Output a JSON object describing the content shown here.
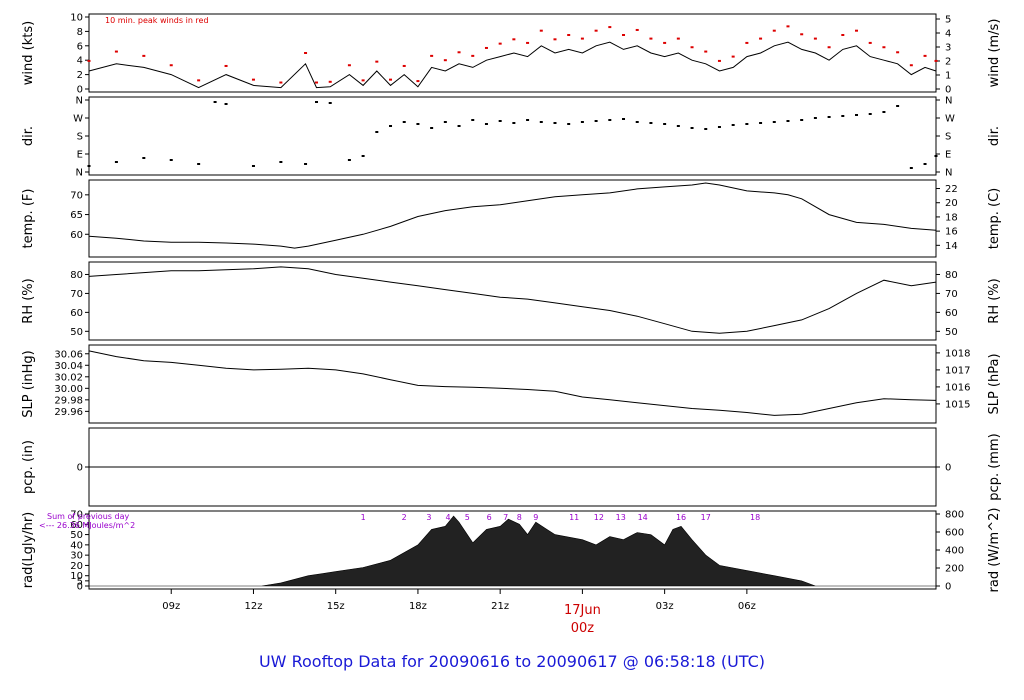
{
  "footer_title": "UW Rooftop Data for 20090616  to  20090617 @ 06:58:18  (UTC)",
  "colors": {
    "peak": "#dd0000",
    "precip_line": "#dd0000",
    "date_marker": "#cc0000",
    "footer": "#1a1ad6",
    "annotation": "#9900cc"
  },
  "chart_data": [
    {
      "id": "wind",
      "type": "line",
      "ylabel_left": "wind (kts)",
      "ylabel_right": "wind (m/s)",
      "annotation": "10 min. peak winds in red",
      "ylim": [
        0,
        10
      ],
      "yticks": [
        0,
        2,
        4,
        6,
        8,
        10
      ],
      "right_ticks": [
        0,
        1,
        2,
        3,
        4,
        5
      ],
      "hours": [
        0,
        1,
        2,
        3,
        4,
        5,
        6,
        7,
        7.9,
        8.3,
        8.8,
        9.5,
        10,
        10.5,
        11,
        11.5,
        12,
        12.5,
        13,
        13.5,
        14,
        14.5,
        15,
        15.5,
        16,
        16.5,
        17,
        17.5,
        18,
        18.5,
        19,
        19.5,
        20,
        20.5,
        21,
        21.5,
        22,
        22.5,
        23,
        23.5,
        24,
        24.5,
        25,
        25.5,
        26,
        26.5,
        27,
        27.5,
        28,
        28.5,
        29,
        29.5,
        30,
        30.5,
        30.9
      ],
      "values": [
        2.5,
        3.5,
        3.0,
        2.0,
        0.2,
        2.0,
        0.5,
        0.2,
        3.5,
        0.2,
        0.3,
        2.0,
        0.5,
        2.5,
        0.5,
        2.0,
        0.3,
        3.0,
        2.5,
        3.5,
        3.0,
        4.0,
        4.5,
        5.0,
        4.5,
        6.0,
        5.0,
        5.5,
        5.0,
        6.0,
        6.5,
        5.5,
        6.0,
        5.0,
        4.5,
        5.0,
        4.0,
        3.5,
        2.5,
        3.0,
        4.5,
        5.0,
        6.0,
        6.5,
        5.5,
        5.0,
        4.0,
        5.5,
        6.0,
        4.5,
        4.0,
        3.5,
        2.0,
        3.0,
        2.5
      ],
      "peaks": [
        3.9,
        5.2,
        4.6,
        3.3,
        1.2,
        3.2,
        1.3,
        0.9,
        5.0,
        0.9,
        1.0,
        3.3,
        1.2,
        3.8,
        1.3,
        3.2,
        1.1,
        4.6,
        4.0,
        5.1,
        4.6,
        5.7,
        6.3,
        6.9,
        6.4,
        8.1,
        6.9,
        7.5,
        7.0,
        8.1,
        8.6,
        7.5,
        8.2,
        7.0,
        6.4,
        7.0,
        5.8,
        5.2,
        3.9,
        4.5,
        6.4,
        7.0,
        8.1,
        8.7,
        7.6,
        7.0,
        5.8,
        7.5,
        8.1,
        6.4,
        5.8,
        5.1,
        3.3,
        4.6,
        3.9
      ]
    },
    {
      "id": "direction",
      "type": "scatter",
      "ylabel_left": "dir.",
      "ylabel_right": "dir.",
      "ylim": [
        0,
        360
      ],
      "yticks": [
        0,
        90,
        180,
        270,
        360
      ],
      "tick_labels": [
        "N",
        "E",
        "S",
        "W",
        "N"
      ],
      "hours": [
        0,
        1,
        2,
        3,
        4,
        4.6,
        5,
        6,
        7,
        7.9,
        8.3,
        8.8,
        9.5,
        10,
        10.5,
        11,
        11.5,
        12,
        12.5,
        13,
        13.5,
        14,
        14.5,
        15,
        15.5,
        16,
        16.5,
        17,
        17.5,
        18,
        18.5,
        19,
        19.5,
        20,
        20.5,
        21,
        21.5,
        22,
        22.5,
        23,
        23.5,
        24,
        24.5,
        25,
        25.5,
        26,
        26.5,
        27,
        27.5,
        28,
        28.5,
        29,
        29.5,
        30,
        30.5,
        30.9
      ],
      "values": [
        30,
        50,
        70,
        60,
        40,
        350,
        340,
        30,
        50,
        40,
        350,
        345,
        60,
        80,
        200,
        230,
        250,
        240,
        220,
        250,
        230,
        260,
        240,
        255,
        245,
        260,
        250,
        245,
        240,
        250,
        255,
        260,
        265,
        250,
        245,
        240,
        230,
        220,
        215,
        225,
        235,
        240,
        245,
        250,
        255,
        260,
        270,
        275,
        280,
        285,
        290,
        300,
        330,
        20,
        40,
        80
      ]
    },
    {
      "id": "temperature",
      "type": "line",
      "ylabel_left": "temp. (F)",
      "ylabel_right": "temp. (C)",
      "ylim": [
        55,
        73
      ],
      "yticks": [
        60,
        65,
        70
      ],
      "right_ticks": [
        14,
        16,
        18,
        20,
        22
      ],
      "hours": [
        0,
        1,
        2,
        3,
        4,
        5,
        6,
        7,
        7.5,
        8,
        9,
        10,
        11,
        12,
        13,
        14,
        15,
        16,
        17,
        18,
        19,
        20,
        21,
        22,
        22.5,
        23,
        24,
        25,
        25.5,
        26,
        27,
        28,
        29,
        30,
        30.9
      ],
      "values": [
        59.5,
        59.0,
        58.3,
        58.0,
        58.0,
        57.8,
        57.5,
        57.0,
        56.5,
        57.0,
        58.5,
        60.0,
        62.0,
        64.5,
        66.0,
        67.0,
        67.5,
        68.5,
        69.5,
        70.0,
        70.5,
        71.5,
        72.0,
        72.5,
        73.0,
        72.5,
        71.0,
        70.5,
        70.0,
        69.0,
        65.0,
        63.0,
        62.5,
        61.5,
        61.0
      ]
    },
    {
      "id": "rh",
      "type": "line",
      "ylabel_left": "RH (%)",
      "ylabel_right": "RH (%)",
      "ylim": [
        47,
        85
      ],
      "yticks": [
        50,
        60,
        70,
        80
      ],
      "right_ticks": [
        50,
        60,
        70,
        80
      ],
      "hours": [
        0,
        1,
        2,
        3,
        4,
        5,
        6,
        7,
        8,
        9,
        10,
        11,
        12,
        13,
        14,
        15,
        16,
        17,
        18,
        19,
        20,
        21,
        22,
        23,
        24,
        25,
        26,
        27,
        28,
        29,
        30,
        30.9
      ],
      "values": [
        79,
        80,
        81,
        82,
        82,
        82.5,
        83,
        84,
        83,
        80,
        78,
        76,
        74,
        72,
        70,
        68,
        67,
        65,
        63,
        61,
        58,
        54,
        50,
        49,
        50,
        53,
        56,
        62,
        70,
        77,
        74,
        76
      ]
    },
    {
      "id": "pressure",
      "type": "line",
      "ylabel_left": "SLP (inHg)",
      "ylabel_right": "SLP (hPa)",
      "ylim": [
        29.945,
        30.07
      ],
      "yticks": [
        29.96,
        29.98,
        30.0,
        30.02,
        30.04,
        30.06
      ],
      "right_ticks": [
        1015,
        1016,
        1017,
        1018
      ],
      "hours": [
        0,
        1,
        2,
        3,
        4,
        5,
        6,
        7,
        8,
        9,
        10,
        11,
        12,
        13,
        14,
        15,
        16,
        17,
        18,
        19,
        20,
        21,
        22,
        23,
        24,
        25,
        26,
        27,
        28,
        29,
        30,
        30.9
      ],
      "values": [
        30.065,
        30.055,
        30.048,
        30.045,
        30.04,
        30.035,
        30.032,
        30.033,
        30.035,
        30.032,
        30.025,
        30.015,
        30.005,
        30.003,
        30.002,
        30.0,
        29.998,
        29.995,
        29.985,
        29.98,
        29.975,
        29.97,
        29.965,
        29.962,
        29.958,
        29.953,
        29.955,
        29.965,
        29.975,
        29.982,
        29.98,
        29.979
      ]
    },
    {
      "id": "precip",
      "type": "line",
      "ylabel_left": "pcp. (in)",
      "ylabel_right": "pcp. (mm)",
      "ylim": [
        -1,
        1
      ],
      "yticks": [
        0
      ],
      "right_ticks": [
        0
      ],
      "hours": [
        0,
        30.9
      ],
      "values": [
        0,
        0
      ]
    },
    {
      "id": "radiation",
      "type": "area",
      "ylabel_left": "rad(Lgly/hr)",
      "ylabel_right": "rad (W/m^2)",
      "ylim": [
        0,
        70
      ],
      "yticks": [
        0,
        5,
        10,
        20,
        30,
        40,
        50,
        60,
        70
      ],
      "right_ticks": [
        0,
        200,
        400,
        600,
        800
      ],
      "annotation_lines": [
        "Sum of previous day",
        "<--- 26.36 MJoules/m^2"
      ],
      "hour_marks": [
        {
          "label": "1",
          "hour": 10.0
        },
        {
          "label": "2",
          "hour": 11.5
        },
        {
          "label": "3",
          "hour": 12.4
        },
        {
          "label": "4",
          "hour": 13.1
        },
        {
          "label": "5",
          "hour": 13.8
        },
        {
          "label": "6",
          "hour": 14.6
        },
        {
          "label": "7",
          "hour": 15.2
        },
        {
          "label": "8",
          "hour": 15.7
        },
        {
          "label": "9",
          "hour": 16.3
        },
        {
          "label": "11",
          "hour": 17.7
        },
        {
          "label": "12",
          "hour": 18.6
        },
        {
          "label": "13",
          "hour": 19.4
        },
        {
          "label": "14",
          "hour": 20.2
        },
        {
          "label": "16",
          "hour": 21.6
        },
        {
          "label": "17",
          "hour": 22.5
        },
        {
          "label": "18",
          "hour": 24.3
        }
      ],
      "hours": [
        0,
        6.3,
        7,
        8,
        8.5,
        9,
        10,
        11,
        12,
        12.5,
        13,
        13.3,
        13.5,
        14,
        14.5,
        15,
        15.3,
        15.7,
        16,
        16.3,
        16.7,
        17,
        18,
        18.5,
        19,
        19.5,
        20,
        20.5,
        21,
        21.3,
        21.6,
        22,
        22.5,
        23,
        24,
        25,
        26,
        26.5,
        30.9
      ],
      "values": [
        0,
        0,
        3,
        10,
        12,
        14,
        18,
        25,
        40,
        55,
        58,
        68,
        62,
        42,
        55,
        58,
        65,
        60,
        50,
        62,
        55,
        50,
        45,
        40,
        48,
        45,
        52,
        50,
        40,
        55,
        58,
        45,
        30,
        20,
        15,
        10,
        5,
        0,
        0
      ]
    },
    {
      "id": "time_axis",
      "type": "table",
      "start_label": "06z",
      "hours_per_day": 24,
      "ticks": [
        {
          "label": "09z",
          "hour": 3
        },
        {
          "label": "12z",
          "hour": 6
        },
        {
          "label": "15z",
          "hour": 9
        },
        {
          "label": "18z",
          "hour": 12
        },
        {
          "label": "21z",
          "hour": 15
        },
        {
          "label": "00z",
          "hour": 18,
          "date": "17Jun"
        },
        {
          "label": "03z",
          "hour": 21
        },
        {
          "label": "06z",
          "hour": 24
        }
      ]
    }
  ]
}
